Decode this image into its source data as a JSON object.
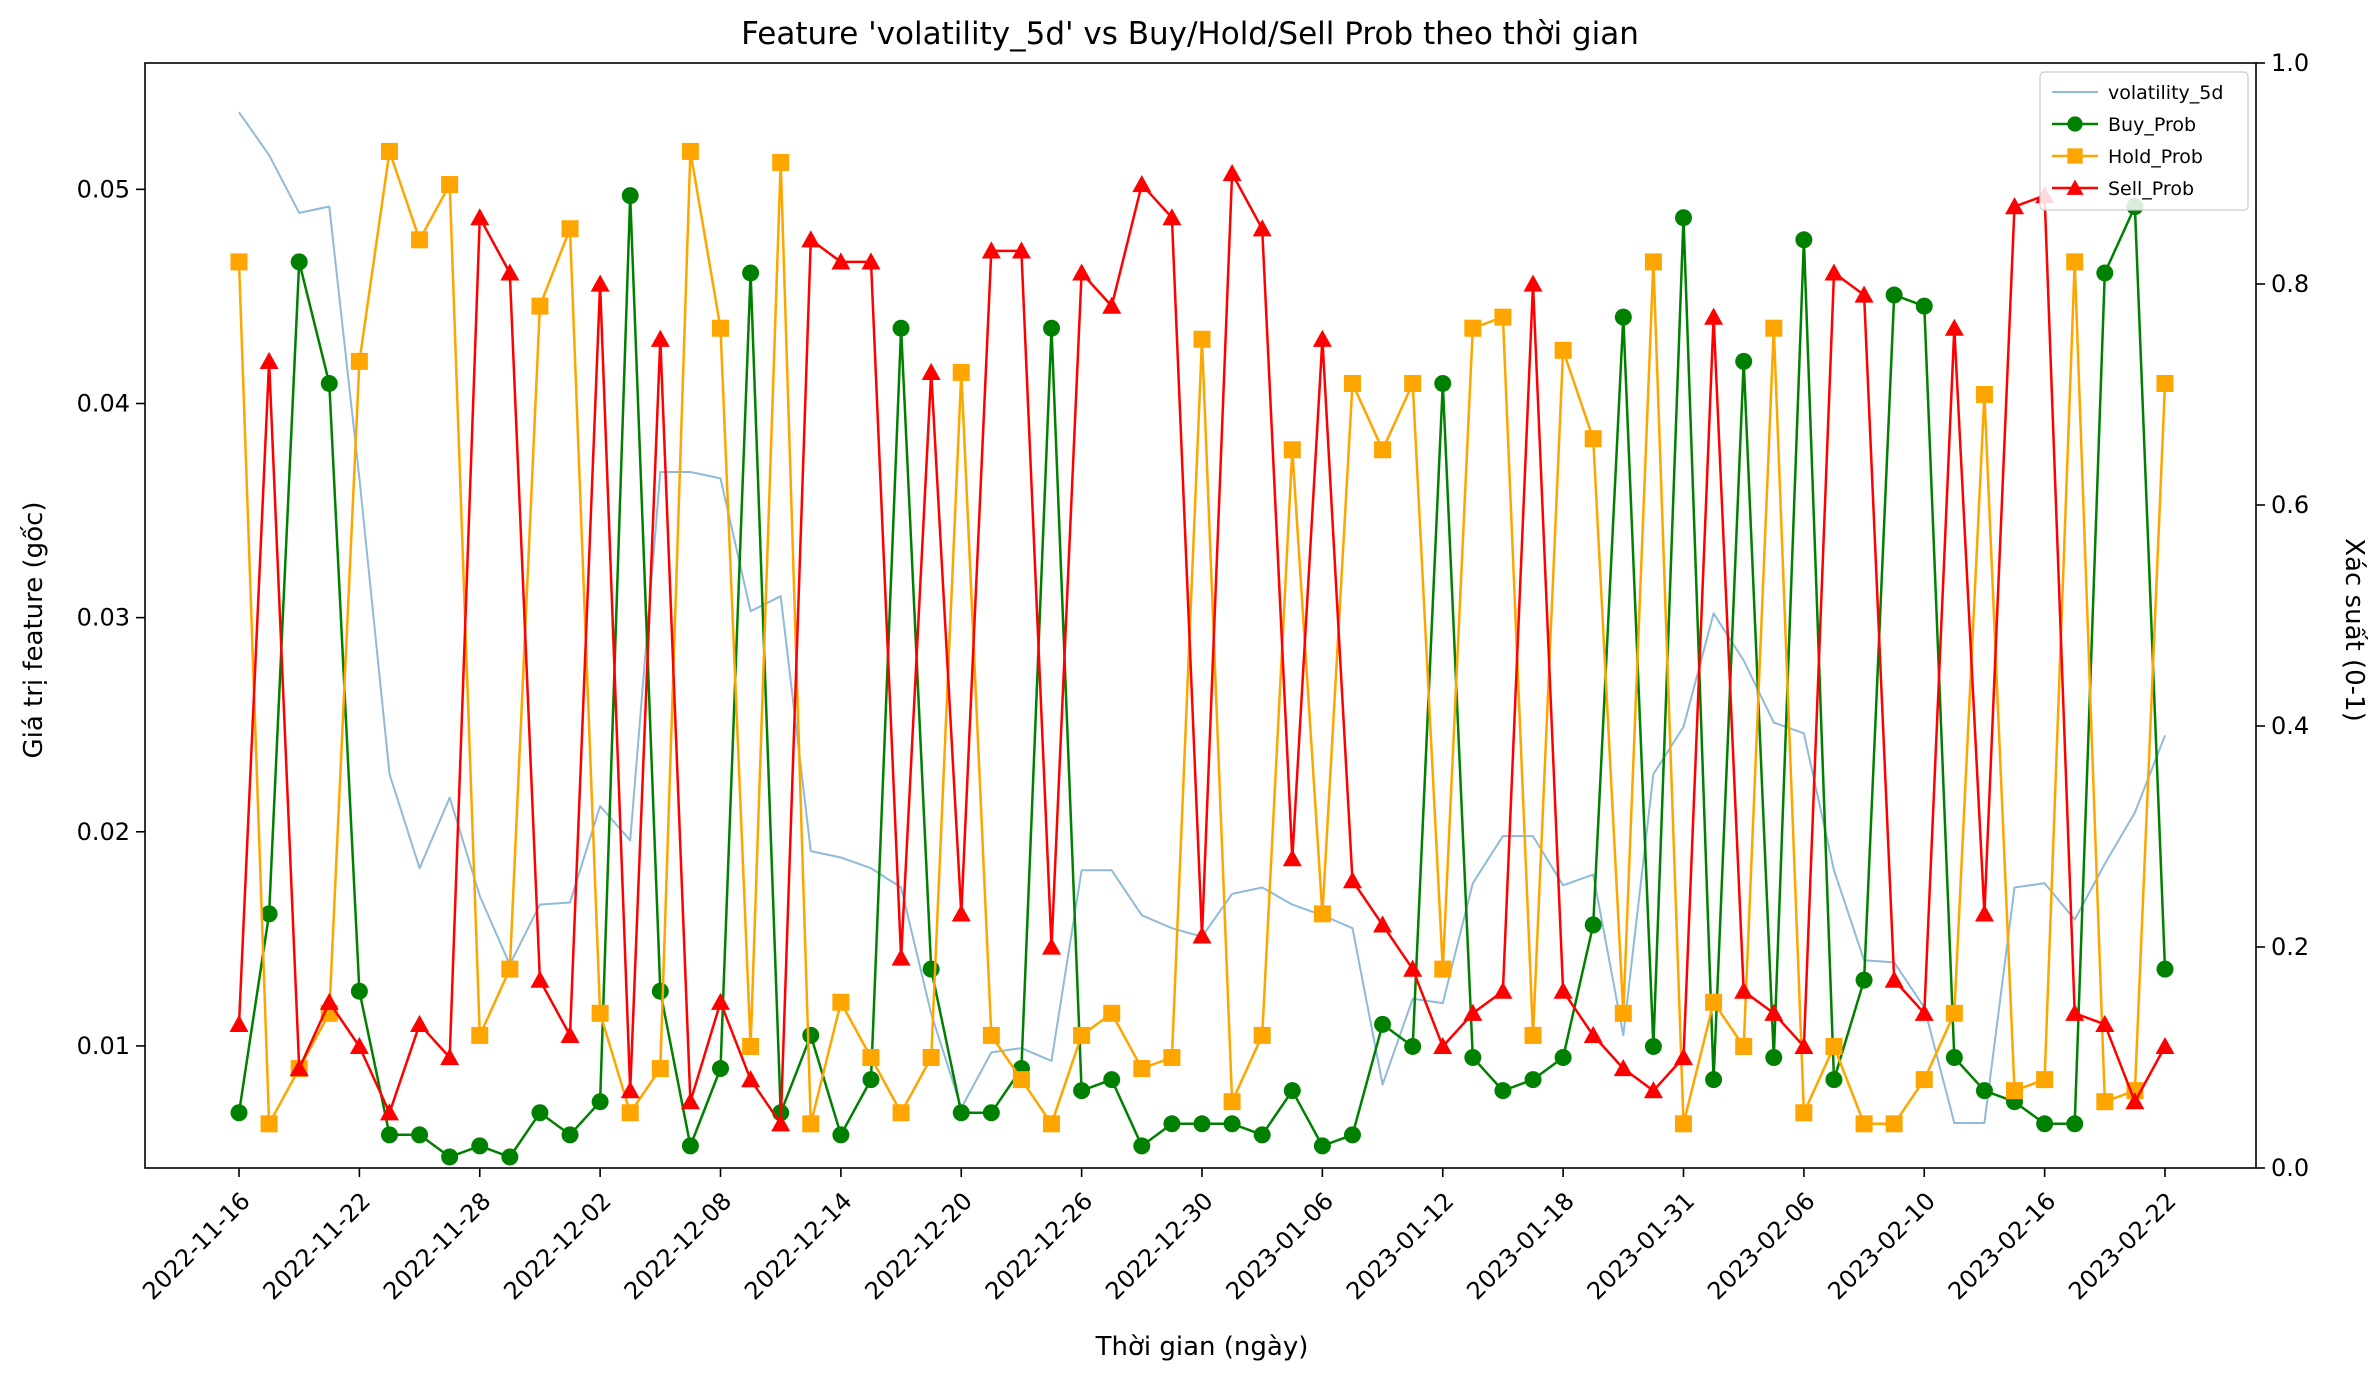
{
  "chart_data": {
    "type": "line",
    "title": "Feature 'volatility_5d' vs Buy/Hold/Sell Prob theo thời gian",
    "xlabel": "Thời gian (ngày)",
    "ylabel_left": "Giá trị feature (gốc)",
    "ylabel_right": "Xác suất (0-1)",
    "ylim_left": [
      0.0043,
      0.0559
    ],
    "ylim_right": [
      0,
      1
    ],
    "yticks_left": [
      "0.01",
      "0.02",
      "0.03",
      "0.04",
      "0.05"
    ],
    "yticks_right": [
      "0.0",
      "0.2",
      "0.4",
      "0.6",
      "0.8",
      "1.0"
    ],
    "xtick_labels": [
      "2022-11-16",
      "2022-11-22",
      "2022-11-28",
      "2022-12-02",
      "2022-12-08",
      "2022-12-14",
      "2022-12-20",
      "2022-12-26",
      "2022-12-30",
      "2023-01-06",
      "2023-01-12",
      "2023-01-18",
      "2023-01-31",
      "2023-02-06",
      "2023-02-10",
      "2023-02-16",
      "2023-02-22"
    ],
    "xtick_positions": [
      0,
      4,
      8,
      12,
      16,
      20,
      24,
      28,
      32,
      36,
      40,
      44,
      48,
      52,
      56,
      60,
      64
    ],
    "legend_position": "top-right",
    "grid": false,
    "series": [
      {
        "name": "volatility_5d",
        "axis": "left",
        "color": "#1f77b4",
        "marker": "none",
        "values": [
          0.0536,
          0.0516,
          0.0489,
          0.0492,
          0.0365,
          0.0227,
          0.0183,
          0.0216,
          0.017,
          0.0138,
          0.0166,
          0.0167,
          0.0212,
          0.0196,
          0.0368,
          0.0368,
          0.0365,
          0.0303,
          0.031,
          0.0191,
          0.0188,
          0.0183,
          0.0174,
          0.0115,
          0.0071,
          0.0097,
          0.0099,
          0.0093,
          0.0182,
          0.0182,
          0.0161,
          0.0155,
          0.0151,
          0.0171,
          0.0174,
          0.0166,
          0.0161,
          0.0155,
          0.0082,
          0.0122,
          0.012,
          0.0176,
          0.0198,
          0.0198,
          0.0175,
          0.018,
          0.0105,
          0.0227,
          0.0249,
          0.0302,
          0.028,
          0.0251,
          0.0246,
          0.0182,
          0.014,
          0.0139,
          0.0118,
          0.0064,
          0.0064,
          0.0174,
          0.0176,
          0.0159,
          0.0185,
          0.0209,
          0.0245
        ]
      },
      {
        "name": "Buy_Prob",
        "axis": "right",
        "color": "#008000",
        "marker": "circle",
        "values": [
          0.05,
          0.23,
          0.82,
          0.71,
          0.16,
          0.03,
          0.03,
          0.01,
          0.02,
          0.01,
          0.05,
          0.03,
          0.06,
          0.88,
          0.16,
          0.02,
          0.09,
          0.81,
          0.05,
          0.12,
          0.03,
          0.08,
          0.76,
          0.18,
          0.05,
          0.05,
          0.09,
          0.76,
          0.07,
          0.08,
          0.02,
          0.04,
          0.04,
          0.04,
          0.03,
          0.07,
          0.02,
          0.03,
          0.13,
          0.11,
          0.71,
          0.1,
          0.07,
          0.08,
          0.1,
          0.22,
          0.77,
          0.11,
          0.86,
          0.08,
          0.73,
          0.1,
          0.84,
          0.08,
          0.17,
          0.79,
          0.78,
          0.1,
          0.07,
          0.06,
          0.04,
          0.04,
          0.81,
          0.87,
          0.18
        ]
      },
      {
        "name": "Hold_Prob",
        "axis": "right",
        "color": "#ffa500",
        "marker": "square",
        "values": [
          0.82,
          0.04,
          0.09,
          0.14,
          0.73,
          0.92,
          0.84,
          0.89,
          0.12,
          0.18,
          0.78,
          0.85,
          0.14,
          0.05,
          0.09,
          0.92,
          0.76,
          0.11,
          0.91,
          0.04,
          0.15,
          0.1,
          0.05,
          0.1,
          0.72,
          0.12,
          0.08,
          0.04,
          0.12,
          0.14,
          0.09,
          0.1,
          0.75,
          0.06,
          0.12,
          0.65,
          0.23,
          0.71,
          0.65,
          0.71,
          0.18,
          0.76,
          0.77,
          0.12,
          0.74,
          0.66,
          0.14,
          0.82,
          0.04,
          0.15,
          0.11,
          0.76,
          0.05,
          0.11,
          0.04,
          0.04,
          0.08,
          0.14,
          0.7,
          0.07,
          0.08,
          0.82,
          0.06,
          0.07,
          0.71
        ]
      },
      {
        "name": "Sell_Prob",
        "axis": "right",
        "color": "#ff0000",
        "marker": "triangle",
        "values": [
          0.13,
          0.73,
          0.09,
          0.15,
          0.11,
          0.05,
          0.13,
          0.1,
          0.86,
          0.81,
          0.17,
          0.12,
          0.8,
          0.07,
          0.75,
          0.06,
          0.15,
          0.08,
          0.04,
          0.84,
          0.82,
          0.82,
          0.19,
          0.72,
          0.23,
          0.83,
          0.83,
          0.2,
          0.81,
          0.78,
          0.89,
          0.86,
          0.21,
          0.9,
          0.85,
          0.28,
          0.75,
          0.26,
          0.22,
          0.18,
          0.11,
          0.14,
          0.16,
          0.8,
          0.16,
          0.12,
          0.09,
          0.07,
          0.1,
          0.77,
          0.16,
          0.14,
          0.11,
          0.81,
          0.79,
          0.17,
          0.14,
          0.76,
          0.23,
          0.87,
          0.88,
          0.14,
          0.13,
          0.06,
          0.11
        ]
      }
    ]
  }
}
